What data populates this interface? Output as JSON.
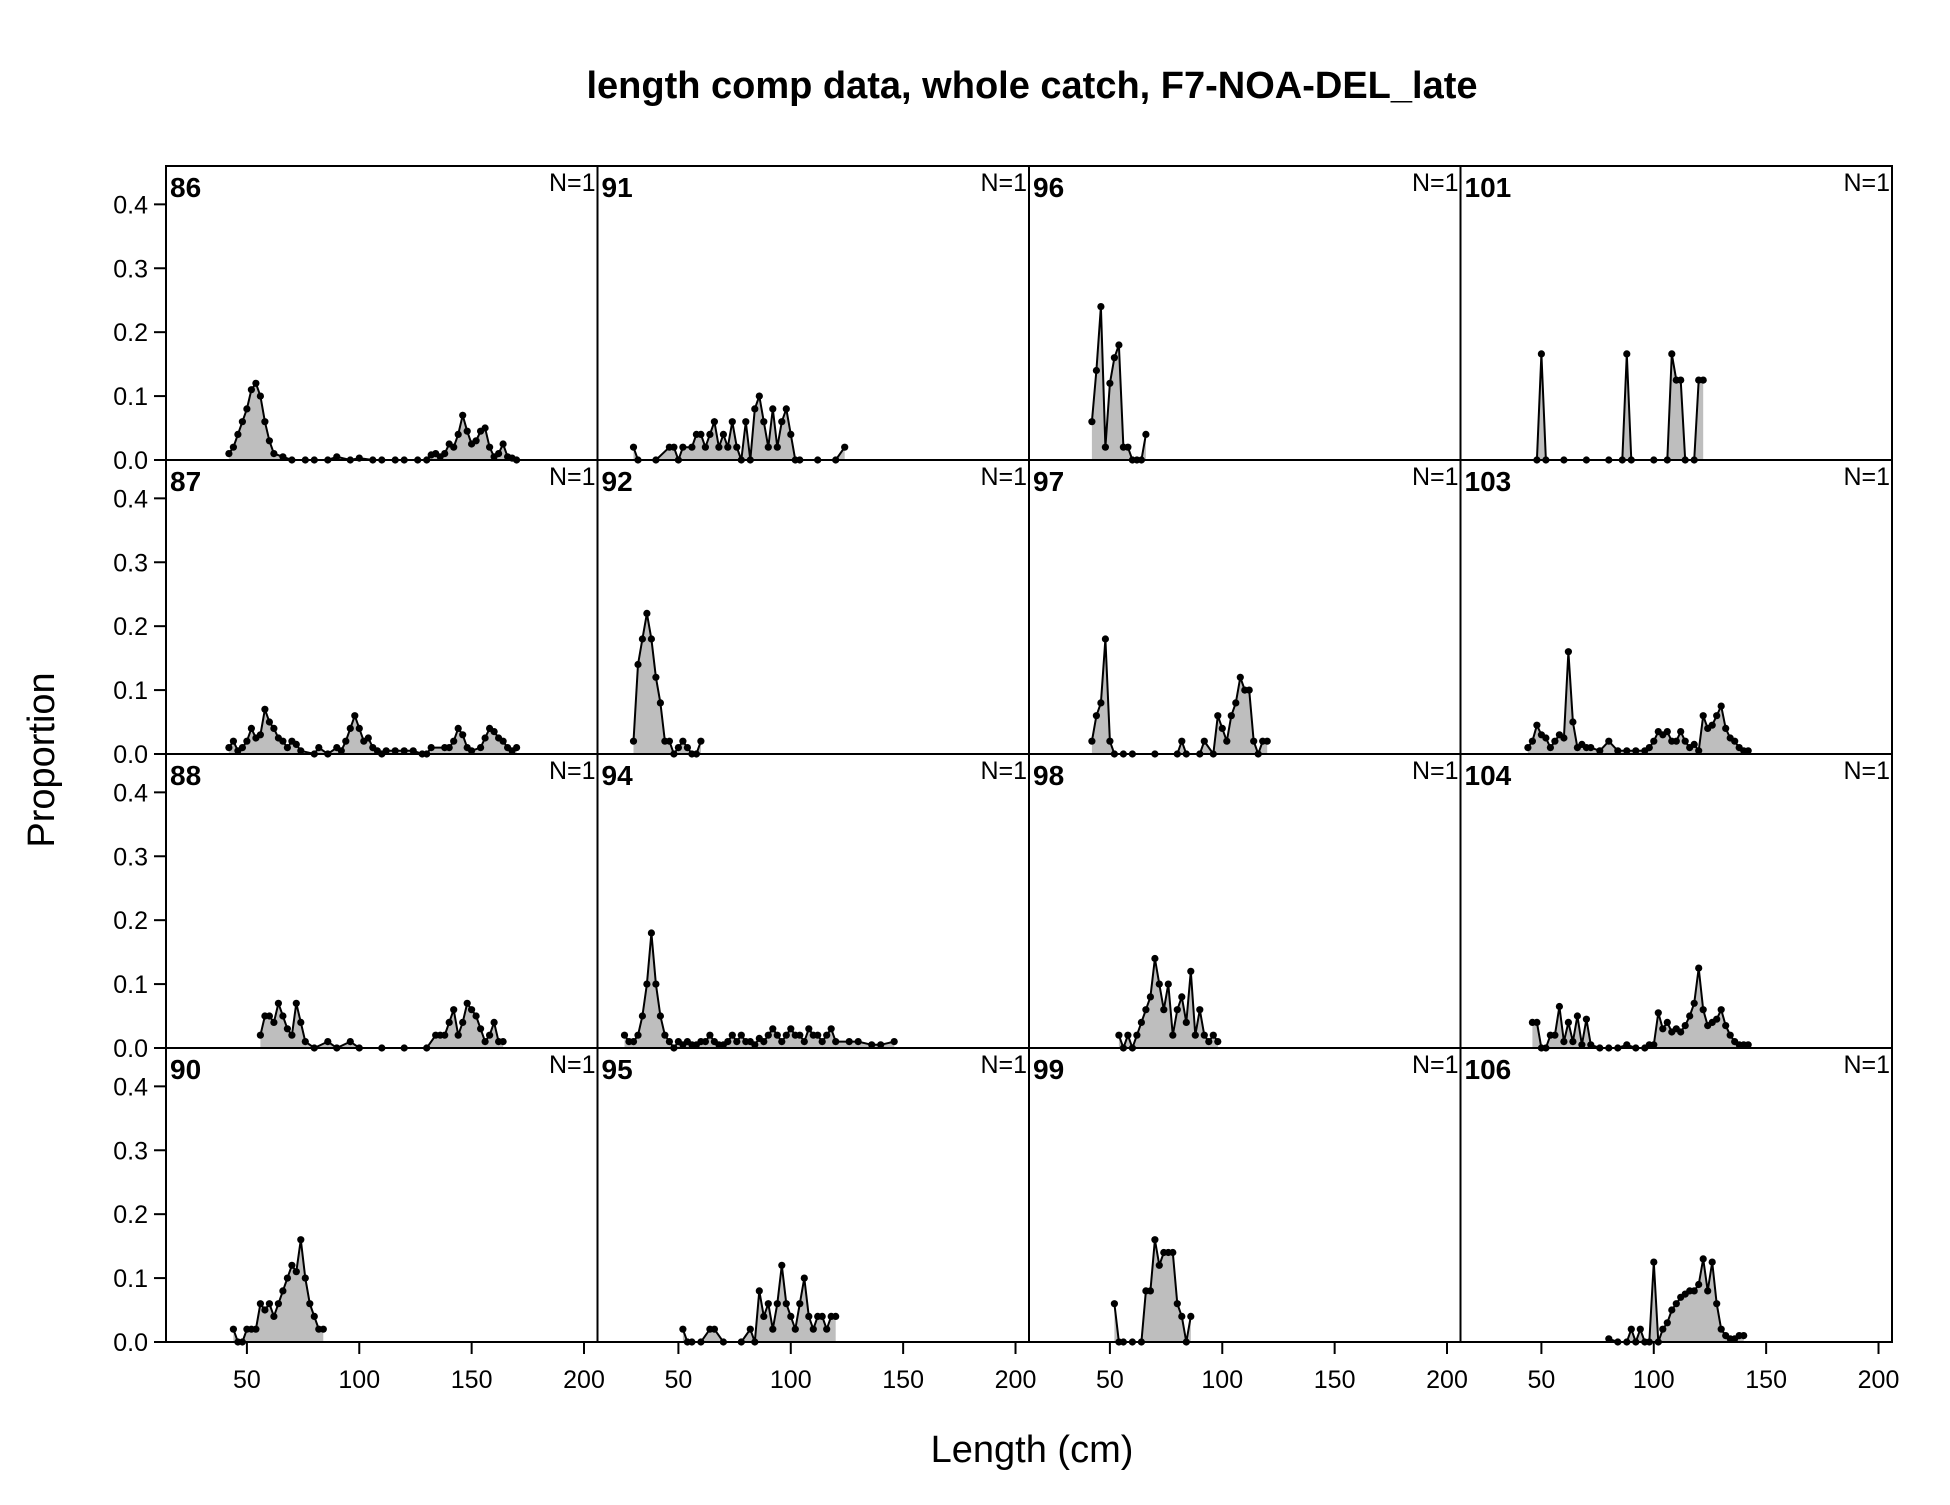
{
  "chart_data": {
    "type": "area",
    "title": "length comp data, whole catch, F7-NOA-DEL_late",
    "xlabel": "Length (cm)",
    "ylabel": "Proportion",
    "xlim": [
      14,
      206
    ],
    "ylim": [
      0,
      0.46
    ],
    "x_ticks": [
      "50",
      "100",
      "150",
      "200"
    ],
    "y_ticks": [
      "0.0",
      "0.1",
      "0.2",
      "0.3",
      "0.4"
    ],
    "layout": "4 rows by 4 columns, filled column-wise",
    "grid": false,
    "fill_color": "#bebebe",
    "line_color": "#000000",
    "panels": [
      {
        "label": "86",
        "n": "N=1",
        "x": [
          42,
          44,
          46,
          48,
          50,
          52,
          54,
          56,
          58,
          60,
          62,
          66,
          70,
          76,
          80,
          86,
          90,
          96,
          100,
          106,
          110,
          116,
          120,
          126,
          130,
          132,
          134,
          136,
          138,
          140,
          142,
          144,
          146,
          148,
          150,
          152,
          154,
          156,
          158,
          160,
          162,
          164,
          166,
          168,
          170
        ],
        "y": [
          0.01,
          0.02,
          0.04,
          0.06,
          0.08,
          0.11,
          0.12,
          0.1,
          0.06,
          0.03,
          0.01,
          0.005,
          0,
          0,
          0,
          0,
          0.005,
          0,
          0.003,
          0,
          0,
          0,
          0,
          0,
          0,
          0.008,
          0.01,
          0.005,
          0.01,
          0.025,
          0.02,
          0.04,
          0.07,
          0.045,
          0.025,
          0.03,
          0.045,
          0.05,
          0.02,
          0.005,
          0.01,
          0.025,
          0.005,
          0.003,
          0
        ]
      },
      {
        "label": "87",
        "n": "N=1",
        "x": [
          42,
          44,
          46,
          48,
          50,
          52,
          54,
          56,
          58,
          60,
          62,
          64,
          66,
          68,
          70,
          72,
          74,
          80,
          82,
          86,
          90,
          92,
          94,
          96,
          98,
          100,
          102,
          104,
          106,
          108,
          110,
          112,
          116,
          120,
          124,
          128,
          130,
          132,
          138,
          140,
          142,
          144,
          146,
          148,
          150,
          154,
          156,
          158,
          160,
          162,
          164,
          166,
          168,
          170
        ],
        "y": [
          0.01,
          0.02,
          0.005,
          0.01,
          0.02,
          0.04,
          0.025,
          0.03,
          0.07,
          0.05,
          0.04,
          0.025,
          0.02,
          0.01,
          0.02,
          0.015,
          0.005,
          0,
          0.01,
          0,
          0.01,
          0.005,
          0.02,
          0.04,
          0.06,
          0.04,
          0.02,
          0.025,
          0.01,
          0.005,
          0,
          0.005,
          0.005,
          0.005,
          0.005,
          0,
          0,
          0.01,
          0.01,
          0.01,
          0.02,
          0.04,
          0.03,
          0.01,
          0.005,
          0.01,
          0.025,
          0.04,
          0.035,
          0.025,
          0.02,
          0.01,
          0.005,
          0.01
        ]
      },
      {
        "label": "88",
        "n": "N=1",
        "x": [
          56,
          58,
          60,
          62,
          64,
          66,
          68,
          70,
          72,
          74,
          76,
          80,
          86,
          90,
          96,
          100,
          110,
          120,
          130,
          134,
          136,
          138,
          140,
          142,
          144,
          146,
          148,
          150,
          152,
          154,
          156,
          158,
          160,
          162,
          164
        ],
        "y": [
          0.02,
          0.05,
          0.05,
          0.04,
          0.07,
          0.05,
          0.03,
          0.02,
          0.07,
          0.04,
          0.01,
          0,
          0.01,
          0,
          0.01,
          0,
          0,
          0,
          0,
          0.02,
          0.02,
          0.02,
          0.04,
          0.06,
          0.02,
          0.04,
          0.07,
          0.06,
          0.05,
          0.03,
          0.01,
          0.02,
          0.04,
          0.01,
          0.01
        ]
      },
      {
        "label": "90",
        "n": "N=1",
        "x": [
          44,
          46,
          48,
          50,
          52,
          54,
          56,
          58,
          60,
          62,
          64,
          66,
          68,
          70,
          72,
          74,
          76,
          78,
          80,
          82,
          84
        ],
        "y": [
          0.02,
          0,
          0,
          0.02,
          0.02,
          0.02,
          0.06,
          0.05,
          0.06,
          0.04,
          0.06,
          0.08,
          0.1,
          0.12,
          0.11,
          0.16,
          0.1,
          0.06,
          0.04,
          0.02,
          0.02
        ]
      },
      {
        "label": "91",
        "n": "N=1",
        "x": [
          30,
          32,
          40,
          46,
          48,
          50,
          52,
          56,
          58,
          60,
          62,
          64,
          66,
          68,
          70,
          72,
          74,
          76,
          78,
          80,
          82,
          84,
          86,
          88,
          90,
          92,
          94,
          96,
          98,
          100,
          102,
          104,
          112,
          120,
          124
        ],
        "y": [
          0.02,
          0,
          0,
          0.02,
          0.02,
          0,
          0.02,
          0.02,
          0.04,
          0.04,
          0.02,
          0.04,
          0.06,
          0.02,
          0.04,
          0.02,
          0.06,
          0.02,
          0,
          0.06,
          0,
          0.08,
          0.1,
          0.06,
          0.02,
          0.08,
          0.02,
          0.06,
          0.08,
          0.04,
          0,
          0,
          0,
          0,
          0.02
        ]
      },
      {
        "label": "92",
        "n": "N=1",
        "x": [
          30,
          32,
          34,
          36,
          38,
          40,
          42,
          44,
          46,
          48,
          50,
          52,
          54,
          56,
          58,
          60
        ],
        "y": [
          0.02,
          0.14,
          0.18,
          0.22,
          0.18,
          0.12,
          0.08,
          0.02,
          0.02,
          0,
          0.01,
          0.02,
          0.01,
          0,
          0,
          0.02
        ]
      },
      {
        "label": "94",
        "n": "N=1",
        "x": [
          26,
          28,
          30,
          32,
          34,
          36,
          38,
          40,
          42,
          44,
          46,
          48,
          50,
          52,
          54,
          56,
          58,
          60,
          62,
          64,
          66,
          68,
          70,
          72,
          74,
          76,
          78,
          80,
          82,
          84,
          86,
          88,
          90,
          92,
          94,
          96,
          98,
          100,
          102,
          104,
          106,
          108,
          110,
          112,
          114,
          116,
          118,
          120,
          126,
          130,
          136,
          140,
          146
        ],
        "y": [
          0.02,
          0.01,
          0.01,
          0.02,
          0.05,
          0.1,
          0.18,
          0.1,
          0.05,
          0.02,
          0.01,
          0,
          0.01,
          0.005,
          0.01,
          0.005,
          0.005,
          0.01,
          0.01,
          0.02,
          0.01,
          0.005,
          0.005,
          0.01,
          0.02,
          0.01,
          0.02,
          0.01,
          0.01,
          0.005,
          0.015,
          0.01,
          0.02,
          0.03,
          0.02,
          0.01,
          0.02,
          0.03,
          0.02,
          0.02,
          0.01,
          0.03,
          0.02,
          0.02,
          0.01,
          0.02,
          0.03,
          0.01,
          0.01,
          0.01,
          0.005,
          0.005,
          0.01
        ]
      },
      {
        "label": "95",
        "n": "N=1",
        "x": [
          52,
          54,
          56,
          60,
          64,
          66,
          70,
          78,
          82,
          84,
          86,
          88,
          90,
          92,
          94,
          96,
          98,
          100,
          102,
          104,
          106,
          108,
          110,
          112,
          114,
          116,
          118,
          120
        ],
        "y": [
          0.02,
          0,
          0,
          0,
          0.02,
          0.02,
          0,
          0,
          0.02,
          0,
          0.08,
          0.04,
          0.06,
          0.02,
          0.06,
          0.12,
          0.06,
          0.04,
          0.02,
          0.06,
          0.1,
          0.04,
          0.02,
          0.04,
          0.04,
          0.02,
          0.04,
          0.04
        ]
      },
      {
        "label": "96",
        "n": "N=1",
        "x": [
          42,
          44,
          46,
          48,
          50,
          52,
          54,
          56,
          58,
          60,
          62,
          64,
          66
        ],
        "y": [
          0.06,
          0.14,
          0.24,
          0.02,
          0.12,
          0.16,
          0.18,
          0.02,
          0.02,
          0,
          0,
          0,
          0.04
        ]
      },
      {
        "label": "97",
        "n": "N=1",
        "x": [
          42,
          44,
          46,
          48,
          50,
          52,
          56,
          60,
          70,
          80,
          82,
          84,
          90,
          92,
          96,
          98,
          100,
          102,
          104,
          106,
          108,
          110,
          112,
          114,
          116,
          118,
          120
        ],
        "y": [
          0.02,
          0.06,
          0.08,
          0.18,
          0.02,
          0,
          0,
          0,
          0,
          0,
          0.02,
          0,
          0,
          0.02,
          0,
          0.06,
          0.04,
          0.02,
          0.06,
          0.08,
          0.12,
          0.1,
          0.1,
          0.02,
          0,
          0.02,
          0.02
        ]
      },
      {
        "label": "98",
        "n": "N=1",
        "x": [
          54,
          56,
          58,
          60,
          62,
          64,
          66,
          68,
          70,
          72,
          74,
          76,
          78,
          80,
          82,
          84,
          86,
          88,
          90,
          92,
          94,
          96,
          98
        ],
        "y": [
          0.02,
          0,
          0.02,
          0,
          0.02,
          0.04,
          0.06,
          0.08,
          0.14,
          0.1,
          0.06,
          0.1,
          0.02,
          0.06,
          0.08,
          0.04,
          0.12,
          0.02,
          0.06,
          0.02,
          0.01,
          0.02,
          0.01
        ]
      },
      {
        "label": "99",
        "n": "N=1",
        "x": [
          52,
          54,
          56,
          60,
          64,
          66,
          68,
          70,
          72,
          74,
          76,
          78,
          80,
          82,
          84,
          86
        ],
        "y": [
          0.06,
          0,
          0,
          0,
          0,
          0.08,
          0.08,
          0.16,
          0.12,
          0.14,
          0.14,
          0.14,
          0.06,
          0.04,
          0,
          0.04
        ]
      },
      {
        "label": "101",
        "n": "N=1",
        "x": [
          48,
          50,
          52,
          60,
          70,
          80,
          86,
          88,
          90,
          100,
          106,
          108,
          110,
          112,
          114,
          118,
          120,
          122
        ],
        "y": [
          0,
          0.166,
          0,
          0,
          0,
          0,
          0,
          0.166,
          0,
          0,
          0,
          0.166,
          0.125,
          0.125,
          0,
          0,
          0.125,
          0.125
        ]
      },
      {
        "label": "103",
        "n": "N=1",
        "x": [
          44,
          46,
          48,
          50,
          52,
          54,
          56,
          58,
          60,
          62,
          64,
          66,
          68,
          70,
          72,
          76,
          80,
          84,
          88,
          92,
          96,
          98,
          100,
          102,
          104,
          106,
          108,
          110,
          112,
          114,
          116,
          118,
          120,
          122,
          124,
          126,
          128,
          130,
          132,
          134,
          136,
          138,
          140,
          142
        ],
        "y": [
          0.01,
          0.02,
          0.045,
          0.03,
          0.025,
          0.01,
          0.02,
          0.03,
          0.025,
          0.16,
          0.05,
          0.01,
          0.015,
          0.01,
          0.01,
          0.005,
          0.02,
          0.005,
          0.005,
          0.005,
          0.005,
          0.01,
          0.02,
          0.035,
          0.03,
          0.035,
          0.02,
          0.02,
          0.035,
          0.02,
          0.01,
          0.015,
          0.005,
          0.06,
          0.04,
          0.045,
          0.06,
          0.075,
          0.04,
          0.025,
          0.02,
          0.01,
          0.005,
          0.005
        ]
      },
      {
        "label": "104",
        "n": "N=1",
        "x": [
          46,
          48,
          50,
          52,
          54,
          56,
          58,
          60,
          62,
          64,
          66,
          68,
          70,
          72,
          76,
          80,
          84,
          88,
          92,
          96,
          98,
          100,
          102,
          104,
          106,
          108,
          110,
          112,
          114,
          116,
          118,
          120,
          122,
          124,
          126,
          128,
          130,
          132,
          134,
          136,
          138,
          140,
          142
        ],
        "y": [
          0.04,
          0.04,
          0,
          0,
          0.02,
          0.02,
          0.065,
          0.01,
          0.04,
          0.01,
          0.05,
          0.005,
          0.045,
          0.005,
          0,
          0,
          0,
          0.005,
          0,
          0,
          0.005,
          0.005,
          0.055,
          0.03,
          0.04,
          0.025,
          0.03,
          0.025,
          0.035,
          0.05,
          0.07,
          0.125,
          0.06,
          0.035,
          0.04,
          0.045,
          0.06,
          0.035,
          0.02,
          0.01,
          0.005,
          0.005,
          0.005
        ]
      },
      {
        "label": "106",
        "n": "N=1",
        "x": [
          80,
          84,
          88,
          90,
          92,
          94,
          96,
          98,
          100,
          102,
          104,
          106,
          108,
          110,
          112,
          114,
          116,
          118,
          120,
          122,
          124,
          126,
          128,
          130,
          132,
          134,
          136,
          138,
          140
        ],
        "y": [
          0.005,
          0,
          0,
          0.02,
          0,
          0.02,
          0,
          0,
          0.125,
          0,
          0.02,
          0.03,
          0.05,
          0.06,
          0.07,
          0.075,
          0.08,
          0.08,
          0.09,
          0.13,
          0.08,
          0.125,
          0.06,
          0.02,
          0.01,
          0.005,
          0.005,
          0.01,
          0.01
        ]
      }
    ]
  }
}
